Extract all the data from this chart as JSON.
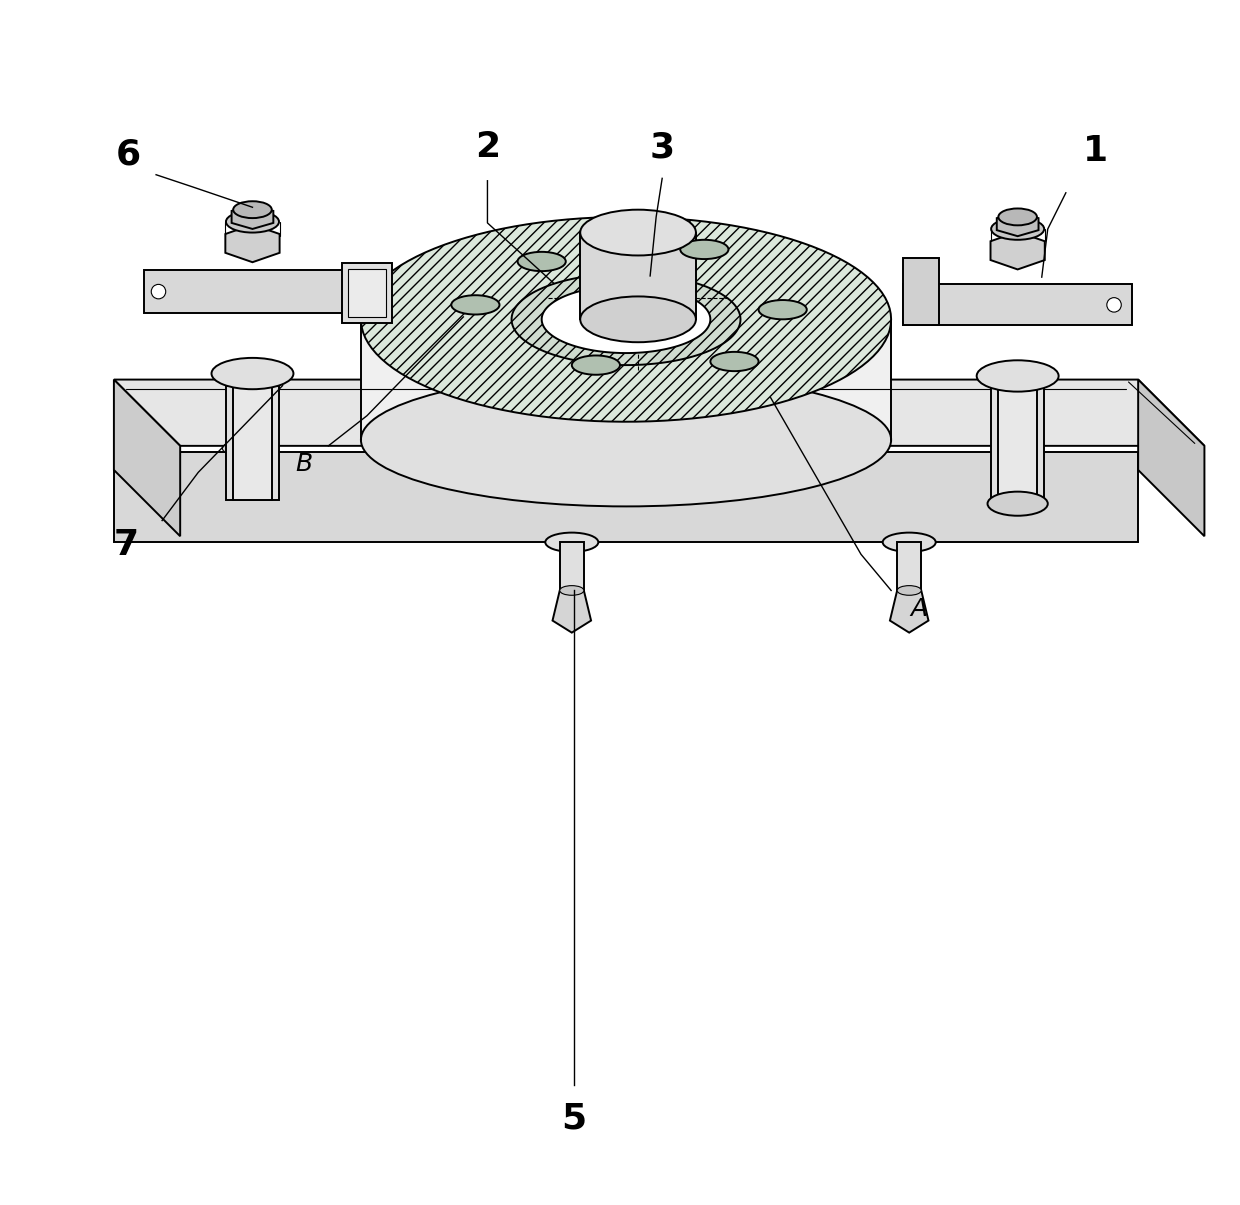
{
  "bg_color": "#ffffff",
  "line_color": "#000000",
  "light_fill": "#eeeeee",
  "mid_fill": "#d8d8d8",
  "dark_fill": "#b8b8b8",
  "hatch_fill": "#e8ede8",
  "label_fontsize": 26,
  "ab_fontsize": 18,
  "fig_width": 12.4,
  "fig_height": 12.05
}
